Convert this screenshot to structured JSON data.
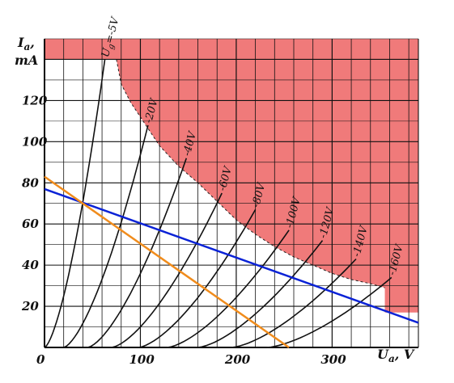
{
  "chart_data": {
    "type": "line",
    "title": "",
    "xlabel": "U",
    "xlabel_sub": "a",
    "xlabel_unit": ", V",
    "ylabel_line1": "I",
    "ylabel_sub": "a",
    "ylabel_line2": "mA",
    "xlim": [
      0,
      390
    ],
    "ylim": [
      0,
      150
    ],
    "x_ticks": [
      0,
      100,
      200,
      300
    ],
    "y_ticks": [
      20,
      40,
      60,
      80,
      100,
      120
    ],
    "grid": true,
    "colors": {
      "forbidden_region": "#f07a7a",
      "load_line_blue": "#0a22d6",
      "load_line_orange": "#f08c1c",
      "curve": "#111111",
      "grid": "#111111"
    },
    "grid_curves": [
      {
        "label_prefix": "U",
        "label_sub": "g",
        "label": "=-5V",
        "vg": -5,
        "x0": 0,
        "x_at_top": 63
      },
      {
        "label": "-20V",
        "vg": -20,
        "x0": 20,
        "x_at_top": 108
      },
      {
        "label": "-40V",
        "vg": -40,
        "x0": 45,
        "x_at_top": 148
      },
      {
        "label": "-60V",
        "vg": -60,
        "x0": 70,
        "x_at_top": 185
      },
      {
        "label": "-80V",
        "vg": -80,
        "x0": 98,
        "x_at_top": 220
      },
      {
        "label": "-100V",
        "vg": -100,
        "x0": 128,
        "x_at_top": 255
      },
      {
        "label": "-120V",
        "vg": -120,
        "x0": 160,
        "x_at_top": 290
      },
      {
        "label": "-140V",
        "vg": -140,
        "x0": 195,
        "x_at_top": 325
      },
      {
        "label": "-160V",
        "vg": -160,
        "x0": 232,
        "x_at_top": 362
      }
    ],
    "curve_top_current": [
      140,
      108,
      92,
      75,
      67,
      57,
      52,
      43,
      34
    ],
    "forbidden_region": {
      "max_current": 140,
      "top_band_from_current": 140,
      "hyperbola_points": [
        [
          75,
          140
        ],
        [
          80,
          128
        ],
        [
          90,
          119
        ],
        [
          100,
          112
        ],
        [
          110,
          105
        ],
        [
          120,
          98
        ],
        [
          140,
          88
        ],
        [
          160,
          80
        ],
        [
          180,
          71
        ],
        [
          200,
          62
        ],
        [
          220,
          55
        ],
        [
          240,
          49
        ],
        [
          260,
          44
        ],
        [
          280,
          40
        ],
        [
          300,
          36
        ],
        [
          320,
          33
        ],
        [
          340,
          31
        ],
        [
          355,
          29
        ]
      ],
      "right_block": {
        "x_from": 355,
        "current_from": 17
      }
    },
    "load_lines": [
      {
        "name": "",
        "color": "blue",
        "points": [
          [
            0,
            77
          ],
          [
            390,
            12
          ]
        ]
      },
      {
        "name": "",
        "color": "orange",
        "points": [
          [
            0,
            83
          ],
          [
            255,
            0
          ]
        ]
      }
    ]
  }
}
